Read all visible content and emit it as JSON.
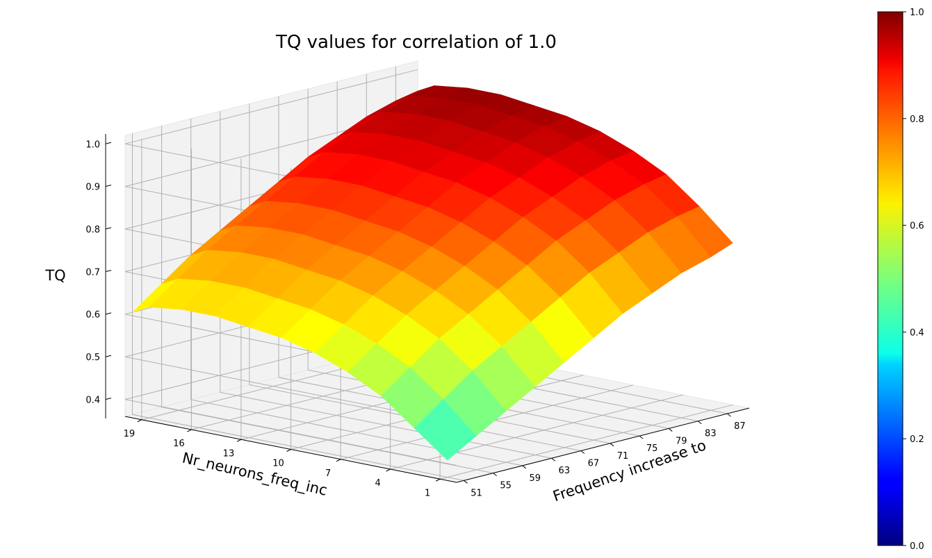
{
  "chart_data": {
    "type": "surface3d",
    "title": "TQ values for correlation of 1.0",
    "xlabel": "Frequency increase to",
    "ylabel": "Nr_neurons_freq_inc",
    "zlabel": "TQ",
    "x_ticks": [
      51,
      55,
      59,
      63,
      67,
      71,
      75,
      79,
      83,
      87
    ],
    "y_ticks": [
      1,
      4,
      7,
      10,
      13,
      16,
      19
    ],
    "z_ticks": [
      "0.4",
      "0.5",
      "0.6",
      "0.7",
      "0.8",
      "0.9",
      "1.0"
    ],
    "xlim": [
      50,
      90
    ],
    "ylim": [
      0,
      20
    ],
    "zlim": [
      0.36,
      1.02
    ],
    "colormap": "jet",
    "colorbar": {
      "ticks": [
        "0.0",
        "0.2",
        "0.4",
        "0.6",
        "0.8",
        "1.0"
      ],
      "range": [
        0.0,
        1.0
      ]
    },
    "surface": {
      "x": [
        51,
        55,
        59,
        63,
        67,
        71,
        75,
        79,
        83,
        87,
        90
      ],
      "y": [
        1,
        3,
        5,
        7,
        9,
        11,
        13,
        15,
        17,
        19,
        20
      ],
      "z": [
        [
          0.4,
          0.44,
          0.48,
          0.52,
          0.56,
          0.6,
          0.64,
          0.67,
          0.7,
          0.72,
          0.74
        ],
        [
          0.46,
          0.51,
          0.56,
          0.6,
          0.64,
          0.68,
          0.72,
          0.75,
          0.78,
          0.8,
          0.81
        ],
        [
          0.52,
          0.57,
          0.62,
          0.66,
          0.7,
          0.74,
          0.78,
          0.81,
          0.84,
          0.86,
          0.87
        ],
        [
          0.56,
          0.61,
          0.66,
          0.7,
          0.74,
          0.78,
          0.82,
          0.85,
          0.88,
          0.9,
          0.91
        ],
        [
          0.59,
          0.64,
          0.69,
          0.73,
          0.77,
          0.81,
          0.85,
          0.88,
          0.91,
          0.93,
          0.94
        ],
        [
          0.61,
          0.66,
          0.71,
          0.75,
          0.79,
          0.83,
          0.87,
          0.9,
          0.93,
          0.95,
          0.96
        ],
        [
          0.62,
          0.67,
          0.72,
          0.76,
          0.8,
          0.84,
          0.88,
          0.91,
          0.94,
          0.96,
          0.97
        ],
        [
          0.63,
          0.68,
          0.73,
          0.77,
          0.81,
          0.85,
          0.89,
          0.92,
          0.95,
          0.97,
          0.98
        ],
        [
          0.63,
          0.68,
          0.73,
          0.77,
          0.81,
          0.85,
          0.89,
          0.92,
          0.95,
          0.97,
          0.98
        ],
        [
          0.62,
          0.67,
          0.72,
          0.76,
          0.8,
          0.84,
          0.88,
          0.91,
          0.94,
          0.96,
          0.97
        ],
        [
          0.6,
          0.65,
          0.7,
          0.74,
          0.78,
          0.82,
          0.86,
          0.89,
          0.92,
          0.94,
          0.95
        ]
      ]
    }
  }
}
